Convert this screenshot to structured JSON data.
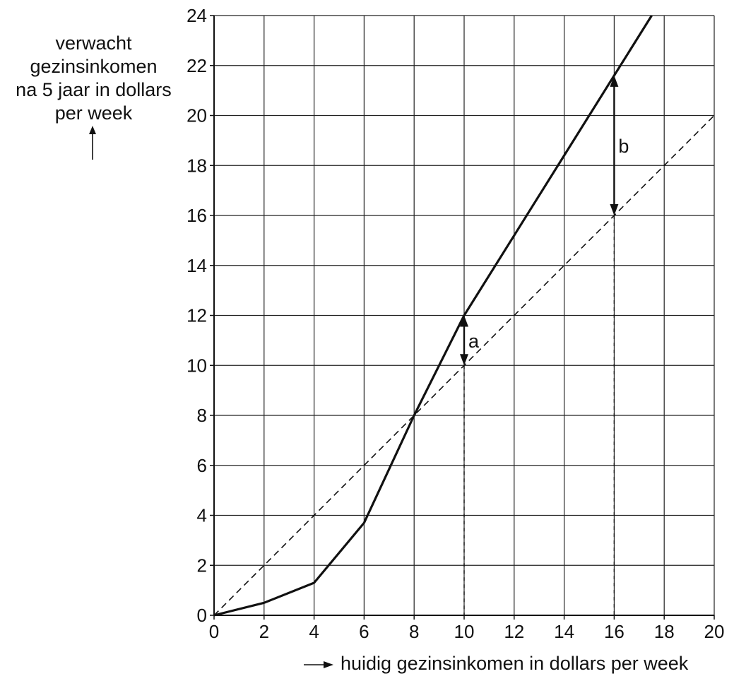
{
  "chart_data": {
    "type": "line",
    "ylabel_lines": [
      "verwacht",
      "gezinsinkomen",
      "na 5 jaar in dollars",
      "per week"
    ],
    "xlabel": "huidig gezinsinkomen in dollars per week",
    "xlim": [
      0,
      20
    ],
    "ylim": [
      0,
      24
    ],
    "x_ticks": [
      "0",
      "2",
      "4",
      "6",
      "8",
      "10",
      "12",
      "14",
      "16",
      "18",
      "20"
    ],
    "y_ticks": [
      "0",
      "2",
      "4",
      "6",
      "8",
      "10",
      "12",
      "14",
      "16",
      "18",
      "20",
      "22",
      "24"
    ],
    "grid": true,
    "series": [
      {
        "style": "solid",
        "points": [
          [
            0,
            0
          ],
          [
            2,
            0.5
          ],
          [
            4,
            1.3
          ],
          [
            6,
            3.7
          ],
          [
            8,
            8
          ],
          [
            10,
            12
          ],
          [
            12,
            15.2
          ],
          [
            14,
            18.4
          ],
          [
            16,
            21.6
          ],
          [
            17.5,
            24
          ]
        ]
      },
      {
        "style": "dashed",
        "points": [
          [
            0,
            0
          ],
          [
            20,
            20
          ]
        ]
      }
    ],
    "annotations": [
      {
        "label": "a",
        "x": 10,
        "y_from": 10,
        "y_to": 12
      },
      {
        "label": "b",
        "x": 16,
        "y_from": 16,
        "y_to": 21.6
      }
    ]
  }
}
